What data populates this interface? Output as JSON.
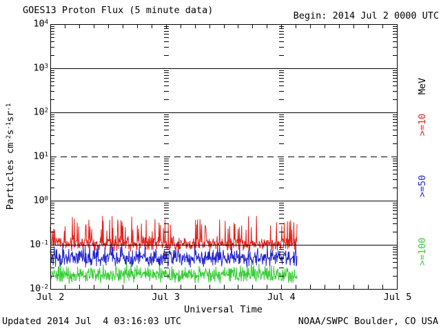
{
  "header": {
    "title": "GOES13 Proton Flux (5 minute data)",
    "begin": "Begin: 2014 Jul 2 0000 UTC"
  },
  "footer": {
    "updated": "Updated 2014 Jul  4 03:16:03 UTC",
    "credit": "NOAA/SWPC Boulder, CO USA"
  },
  "y_axis_title": {
    "p1": "Particles cm",
    "s1": "-2",
    "p2": "s",
    "s2": "-1",
    "p3": "sr",
    "s3": "-1"
  },
  "legend": {
    "unit": "MeV",
    "items": [
      {
        "label": ">=10",
        "color": "#e32119"
      },
      {
        "label": ">=50",
        "color": "#2222cc"
      },
      {
        "label": ">=100",
        "color": "#33cc33"
      }
    ]
  },
  "chart_data": {
    "type": "line",
    "title": "GOES13 Proton Flux (5 minute data)",
    "xlabel": "Universal Time",
    "ylabel": "Particles cm^-2 s^-1 sr^-1",
    "x_axis": {
      "start": "2014 Jul 2 0000 UTC",
      "tick_labels": [
        "Jul 2",
        "Jul 3",
        "Jul 4",
        "Jul 5"
      ],
      "span_days": 3,
      "minor_tick_hours": 3
    },
    "y_axis": {
      "scale": "log",
      "min": 0.01,
      "max": 10000,
      "tick_exponents": [
        4,
        3,
        2,
        1,
        0,
        -1,
        -2
      ]
    },
    "gridlines": [
      {
        "value": 1000,
        "style": "solid"
      },
      {
        "value": 100,
        "style": "solid"
      },
      {
        "value": 10,
        "style": "dashed"
      },
      {
        "value": 1,
        "style": "solid"
      },
      {
        "value": 0.1,
        "style": "solid"
      }
    ],
    "sample_minutes": 5,
    "data_span_days": 2.135,
    "series": [
      {
        "name": ">=10 MeV",
        "color": "#e32119",
        "baseline": 0.105,
        "band_log": 0.2,
        "spike_prob": 0.1,
        "max": 0.45,
        "min": 0.07,
        "seed": 20140702
      },
      {
        "name": ">=50 MeV",
        "color": "#2222cc",
        "baseline": 0.05,
        "band_log": 0.22,
        "spike_prob": 0.05,
        "max": 0.12,
        "min": 0.03,
        "seed": 1350
      },
      {
        "name": ">=100 MeV",
        "color": "#33cc33",
        "baseline": 0.021,
        "band_log": 0.22,
        "spike_prob": 0.02,
        "max": 0.05,
        "min": 0.012,
        "seed": 777
      }
    ]
  }
}
